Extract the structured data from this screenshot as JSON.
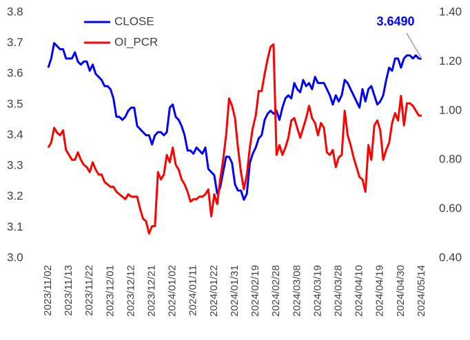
{
  "chart_data": {
    "type": "line",
    "categories": [
      "2023/11/02",
      null,
      null,
      null,
      null,
      null,
      null,
      "2023/11/13",
      null,
      null,
      null,
      null,
      null,
      null,
      "2023/11/22",
      null,
      null,
      null,
      null,
      null,
      null,
      "2023/12/01",
      null,
      null,
      null,
      null,
      null,
      null,
      "2023/12/12",
      null,
      null,
      null,
      null,
      null,
      null,
      "2023/12/21",
      null,
      null,
      null,
      null,
      null,
      null,
      "2024/01/02",
      null,
      null,
      null,
      null,
      null,
      null,
      "2024/01/11",
      null,
      null,
      null,
      null,
      null,
      null,
      "2024/01/22",
      null,
      null,
      null,
      null,
      null,
      null,
      "2024/01/31",
      null,
      null,
      null,
      null,
      null,
      null,
      "2024/02/19",
      null,
      null,
      null,
      null,
      null,
      null,
      "2024/02/28",
      null,
      null,
      null,
      null,
      null,
      null,
      "2024/03/08",
      null,
      null,
      null,
      null,
      null,
      null,
      "2024/03/19",
      null,
      null,
      null,
      null,
      null,
      null,
      "2024/03/28",
      null,
      null,
      null,
      null,
      null,
      null,
      "2024/04/10",
      null,
      null,
      null,
      null,
      null,
      null,
      "2024/04/19",
      null,
      null,
      null,
      null,
      null,
      null,
      "2024/04/30",
      null,
      null,
      null,
      null,
      null,
      null,
      "2024/05/14"
    ],
    "series": [
      {
        "name": "CLOSE",
        "color": "#0000ff",
        "values": [
          3.62,
          3.65,
          3.7,
          3.69,
          3.68,
          3.68,
          3.65,
          3.65,
          3.65,
          3.67,
          3.64,
          3.63,
          3.64,
          3.64,
          3.61,
          3.63,
          3.6,
          3.59,
          3.58,
          3.56,
          3.56,
          3.55,
          3.52,
          3.46,
          3.46,
          3.45,
          3.46,
          3.48,
          3.49,
          3.49,
          3.43,
          3.42,
          3.41,
          3.4,
          3.4,
          3.37,
          3.4,
          3.41,
          3.41,
          3.4,
          3.41,
          3.49,
          3.5,
          3.46,
          3.45,
          3.43,
          3.4,
          3.35,
          3.35,
          3.34,
          3.36,
          3.35,
          3.34,
          3.36,
          3.29,
          3.28,
          3.27,
          3.21,
          3.23,
          3.28,
          3.33,
          3.33,
          3.31,
          3.24,
          3.22,
          3.22,
          3.19,
          3.21,
          3.31,
          3.34,
          3.36,
          3.39,
          3.4,
          3.45,
          3.47,
          3.48,
          3.47,
          3.48,
          3.45,
          3.49,
          3.52,
          3.53,
          3.52,
          3.57,
          3.55,
          3.54,
          3.58,
          3.56,
          3.57,
          3.55,
          3.59,
          3.57,
          3.57,
          3.57,
          3.55,
          3.53,
          3.5,
          3.53,
          3.51,
          3.53,
          3.58,
          3.57,
          3.55,
          3.53,
          3.51,
          3.49,
          3.55,
          3.51,
          3.55,
          3.56,
          3.53,
          3.5,
          3.51,
          3.53,
          3.58,
          3.62,
          3.61,
          3.65,
          3.65,
          3.62,
          3.65,
          3.66,
          3.66,
          3.65,
          3.66,
          3.65,
          3.649
        ]
      },
      {
        "name": "OI_PCR",
        "color": "#ff0000",
        "axis": "y2",
        "values": [
          0.85,
          0.87,
          0.93,
          0.91,
          0.9,
          0.92,
          0.84,
          0.82,
          0.8,
          0.8,
          0.83,
          0.8,
          0.78,
          0.77,
          0.75,
          0.79,
          0.76,
          0.74,
          0.74,
          0.71,
          0.7,
          0.69,
          0.69,
          0.67,
          0.66,
          0.65,
          0.64,
          0.66,
          0.65,
          0.65,
          0.65,
          0.6,
          0.56,
          0.55,
          0.5,
          0.53,
          0.53,
          0.75,
          0.72,
          0.74,
          0.82,
          0.79,
          0.85,
          0.78,
          0.76,
          0.72,
          0.7,
          0.67,
          0.63,
          0.64,
          0.64,
          0.65,
          0.65,
          0.66,
          0.68,
          0.57,
          0.66,
          0.62,
          0.72,
          0.8,
          0.9,
          1.05,
          1.02,
          0.97,
          0.85,
          0.75,
          0.68,
          0.74,
          0.85,
          0.93,
          0.98,
          1.08,
          1.08,
          1.15,
          1.21,
          1.26,
          1.27,
          0.82,
          0.86,
          0.82,
          0.85,
          0.89,
          0.96,
          0.97,
          0.93,
          0.89,
          0.93,
          0.97,
          1.02,
          0.97,
          0.95,
          0.9,
          0.95,
          0.93,
          0.83,
          0.82,
          0.84,
          0.77,
          0.81,
          0.82,
          1.0,
          0.9,
          0.86,
          0.81,
          0.77,
          0.73,
          0.72,
          0.67,
          0.86,
          0.8,
          0.94,
          0.96,
          0.92,
          0.8,
          0.84,
          0.87,
          0.95,
          0.99,
          0.96,
          1.06,
          0.94,
          1.03,
          1.03,
          1.02,
          1.0,
          0.98,
          0.98
        ]
      }
    ],
    "annotation": "3.6490",
    "ylim": [
      3.0,
      3.8
    ],
    "yticks": [
      {
        "value": 3.0,
        "label": "3.0"
      },
      3.1,
      3.2,
      3.3,
      3.4,
      3.5,
      3.6,
      3.7,
      {
        "value": 3.8,
        "label": "3.8"
      }
    ],
    "y2lim": [
      0.4,
      1.4
    ],
    "y2ticks": [
      {
        "value": 0.4,
        "label": "0.40"
      },
      {
        "value": 0.6,
        "label": "0.60"
      },
      {
        "value": 0.8,
        "label": "0.80"
      },
      {
        "value": 1.0,
        "label": "1.00"
      },
      {
        "value": 1.2,
        "label": "1.20"
      },
      {
        "value": 1.4,
        "label": "1.40"
      }
    ],
    "grid": false
  }
}
